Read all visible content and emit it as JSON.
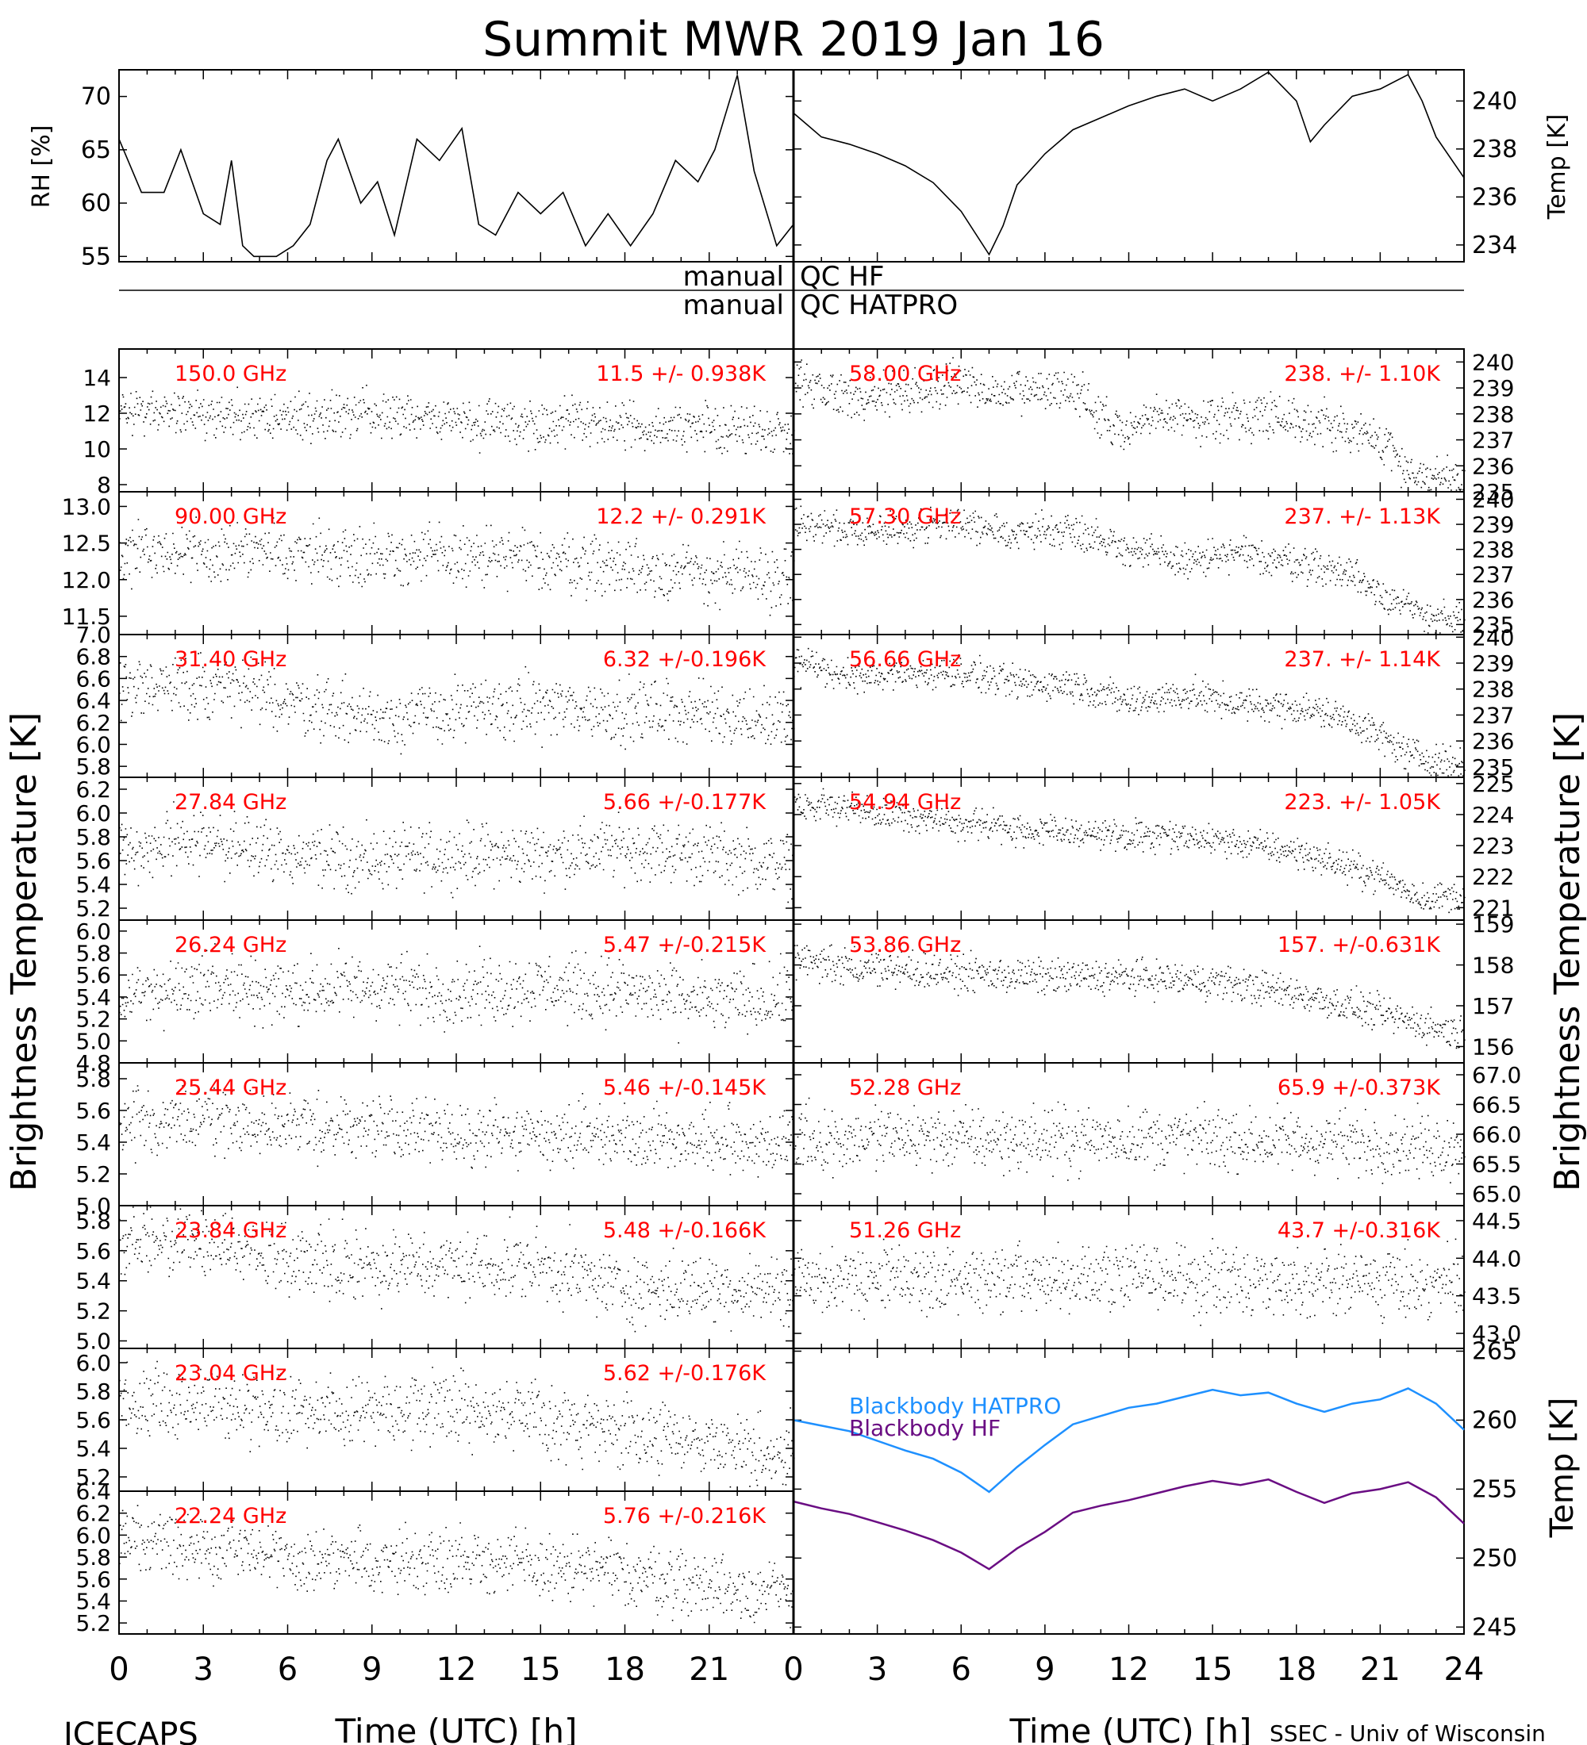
{
  "title": "Summit MWR 2019 Jan 16",
  "footer": {
    "left": "ICECAPS",
    "right": "SSEC - Univ of Wisconsin"
  },
  "qc_labels": {
    "upper_left": "manual",
    "upper_right": "QC HF",
    "lower_left": "manual",
    "lower_right": "QC HATPRO"
  },
  "x_axis": {
    "label": "Time (UTC) [h]",
    "ticks_left": [
      "0",
      "3",
      "6",
      "9",
      "12",
      "15",
      "18",
      "21"
    ],
    "ticks_right": [
      "0",
      "3",
      "6",
      "9",
      "12",
      "15",
      "18",
      "21",
      "24"
    ],
    "range": [
      0,
      24
    ]
  },
  "y_axis_labels": {
    "left_main": "Brightness Temperature [K]",
    "right_main": "Brightness Temperature [K]",
    "rh": "RH [%]",
    "temp_top": "Temp [K]",
    "temp_bottom": "Temp [K]"
  },
  "colors": {
    "data": "#000000",
    "annotation": "#ff0000",
    "bb_hatpro": "#1e90ff",
    "bb_hf": "#6a0d83"
  },
  "chart_data": [
    {
      "type": "line",
      "id": "rh",
      "ylabel": "RH [%]",
      "ylim": [
        54.5,
        72.5
      ],
      "ticks": [
        "55",
        "60",
        "65",
        "70"
      ],
      "x": [
        0,
        0.8,
        1.6,
        2.2,
        3.0,
        3.6,
        4.0,
        4.4,
        4.8,
        5.6,
        6.2,
        6.8,
        7.4,
        7.8,
        8.6,
        9.2,
        9.8,
        10.6,
        11.4,
        12.2,
        12.8,
        13.4,
        14.2,
        15.0,
        15.8,
        16.6,
        17.4,
        18.2,
        19.0,
        19.8,
        20.6,
        21.2,
        22.0,
        22.6,
        23.4,
        24
      ],
      "values": [
        66,
        61,
        61,
        65,
        59,
        58,
        64,
        56,
        55,
        55,
        56,
        58,
        64,
        66,
        60,
        62,
        57,
        66,
        64,
        67,
        58,
        57,
        61,
        59,
        61,
        56,
        59,
        56,
        59,
        64,
        62,
        65,
        72,
        63,
        56,
        58
      ]
    },
    {
      "type": "line",
      "id": "temp_top",
      "ylabel": "Temp [K]",
      "ylim": [
        233.3,
        241.3
      ],
      "ticks": [
        "234",
        "236",
        "238",
        "240"
      ],
      "x": [
        0,
        1,
        2,
        3,
        4,
        5,
        6,
        7,
        7.5,
        8,
        9,
        10,
        11,
        12,
        13,
        14,
        15,
        16,
        17,
        18,
        18.5,
        19,
        20,
        21,
        22,
        22.5,
        23,
        24
      ],
      "values": [
        239.5,
        238.5,
        238.2,
        237.8,
        237.3,
        236.6,
        235.4,
        233.6,
        234.8,
        236.5,
        237.8,
        238.8,
        239.3,
        239.8,
        240.2,
        240.5,
        240.0,
        240.5,
        241.2,
        240.0,
        238.3,
        239.0,
        240.2,
        240.5,
        241.1,
        240.0,
        238.5,
        236.8
      ]
    },
    {
      "type": "scatter",
      "id": "ch150",
      "label": "150.0 GHz",
      "stat": "11.5 +/- 0.938K",
      "side": "left",
      "ylim": [
        7.6,
        15.6
      ],
      "ticks": [
        "8",
        "10",
        "12",
        "14"
      ],
      "x": [
        0,
        4,
        8,
        12,
        16,
        20,
        24
      ],
      "values": [
        12.1,
        11.8,
        11.9,
        11.6,
        11.4,
        11.2,
        11.0
      ],
      "noise": 0.94
    },
    {
      "type": "scatter",
      "id": "ch90",
      "label": "90.00 GHz",
      "stat": "12.2 +/- 0.291K",
      "side": "left",
      "ylim": [
        11.25,
        13.2
      ],
      "ticks": [
        "11.5",
        "12.0",
        "12.5",
        "13.0"
      ],
      "x": [
        0,
        4,
        8,
        12,
        16,
        20,
        24
      ],
      "values": [
        12.3,
        12.4,
        12.35,
        12.3,
        12.25,
        12.1,
        12.0
      ],
      "noise": 0.29
    },
    {
      "type": "scatter",
      "id": "ch3140",
      "label": "31.40 GHz",
      "stat": "6.32 +/-0.196K",
      "side": "left",
      "ylim": [
        5.7,
        7.0
      ],
      "ticks": [
        "5.8",
        "6.0",
        "6.2",
        "6.4",
        "6.6",
        "6.8",
        "7.0"
      ],
      "x": [
        0,
        3,
        6,
        9,
        12,
        15,
        18,
        21,
        24
      ],
      "values": [
        6.5,
        6.55,
        6.4,
        6.25,
        6.3,
        6.35,
        6.3,
        6.3,
        6.2
      ],
      "noise": 0.2
    },
    {
      "type": "scatter",
      "id": "ch2784",
      "label": "27.84 GHz",
      "stat": "5.66 +/-0.177K",
      "side": "left",
      "ylim": [
        5.1,
        6.3
      ],
      "ticks": [
        "5.2",
        "5.4",
        "5.6",
        "5.8",
        "6.0",
        "6.2"
      ],
      "x": [
        0,
        3,
        6,
        9,
        12,
        15,
        18,
        21,
        24
      ],
      "values": [
        5.7,
        5.75,
        5.65,
        5.6,
        5.65,
        5.65,
        5.7,
        5.65,
        5.55
      ],
      "noise": 0.18
    },
    {
      "type": "scatter",
      "id": "ch2624",
      "label": "26.24 GHz",
      "stat": "5.47 +/-0.215K",
      "side": "left",
      "ylim": [
        4.8,
        6.1
      ],
      "ticks": [
        "4.8",
        "5.0",
        "5.2",
        "5.4",
        "5.6",
        "5.8",
        "6.0"
      ],
      "x": [
        0,
        3,
        6,
        9,
        12,
        15,
        18,
        21,
        24
      ],
      "values": [
        5.4,
        5.5,
        5.45,
        5.5,
        5.45,
        5.5,
        5.45,
        5.35,
        5.4
      ],
      "noise": 0.21
    },
    {
      "type": "scatter",
      "id": "ch2544",
      "label": "25.44 GHz",
      "stat": "5.46 +/-0.145K",
      "side": "left",
      "ylim": [
        5.0,
        5.9
      ],
      "ticks": [
        "5.0",
        "5.2",
        "5.4",
        "5.6",
        "5.8"
      ],
      "x": [
        0,
        3,
        6,
        9,
        12,
        15,
        18,
        21,
        24
      ],
      "values": [
        5.5,
        5.55,
        5.5,
        5.5,
        5.45,
        5.45,
        5.45,
        5.4,
        5.4
      ],
      "noise": 0.14
    },
    {
      "type": "scatter",
      "id": "ch2384",
      "label": "23.84 GHz",
      "stat": "5.48 +/-0.166K",
      "side": "left",
      "ylim": [
        4.95,
        5.9
      ],
      "ticks": [
        "5.0",
        "5.2",
        "5.4",
        "5.6",
        "5.8"
      ],
      "x": [
        0,
        3,
        6,
        9,
        12,
        15,
        18,
        21,
        24
      ],
      "values": [
        5.65,
        5.65,
        5.55,
        5.5,
        5.5,
        5.5,
        5.35,
        5.35,
        5.35
      ],
      "noise": 0.16
    },
    {
      "type": "scatter",
      "id": "ch2304",
      "label": "23.04 GHz",
      "stat": "5.62 +/-0.176K",
      "side": "left",
      "ylim": [
        5.1,
        6.1
      ],
      "ticks": [
        "5.2",
        "5.4",
        "5.6",
        "5.8",
        "6.0"
      ],
      "x": [
        0,
        3,
        6,
        9,
        12,
        15,
        18,
        21,
        24
      ],
      "values": [
        5.75,
        5.7,
        5.65,
        5.7,
        5.7,
        5.6,
        5.5,
        5.45,
        5.35
      ],
      "noise": 0.17
    },
    {
      "type": "scatter",
      "id": "ch2224",
      "label": "22.24 GHz",
      "stat": "5.76 +/-0.216K",
      "side": "left",
      "ylim": [
        5.1,
        6.4
      ],
      "ticks": [
        "5.2",
        "5.4",
        "5.6",
        "5.8",
        "6.0",
        "6.2",
        "6.4"
      ],
      "x": [
        0,
        3,
        6,
        9,
        12,
        15,
        18,
        21,
        24
      ],
      "values": [
        6.0,
        5.9,
        5.8,
        5.75,
        5.8,
        5.7,
        5.65,
        5.55,
        5.45
      ],
      "noise": 0.21
    },
    {
      "type": "scatter",
      "id": "ch5800",
      "label": "58.00 GHz",
      "stat": "238. +/- 1.10K",
      "side": "right",
      "ylim": [
        235,
        240.5
      ],
      "ticks": [
        "235",
        "236",
        "237",
        "238",
        "239",
        "240"
      ],
      "x": [
        0,
        2,
        4,
        6,
        7,
        8,
        10,
        11,
        12,
        13,
        15,
        17,
        19,
        21,
        22,
        24
      ],
      "values": [
        239.2,
        238.6,
        238.8,
        239.3,
        238.7,
        238.8,
        239.0,
        237.8,
        237.2,
        238.0,
        237.8,
        238.0,
        237.6,
        237.0,
        235.8,
        235.3
      ],
      "noise": 0.6
    },
    {
      "type": "scatter",
      "id": "ch5730",
      "label": "57.30 GHz",
      "stat": "237. +/- 1.13K",
      "side": "right",
      "ylim": [
        234.6,
        240.3
      ],
      "ticks": [
        "235",
        "236",
        "237",
        "238",
        "239",
        "240"
      ],
      "x": [
        0,
        2,
        4,
        6,
        7,
        8,
        10,
        12,
        14,
        16,
        18,
        20,
        22,
        24
      ],
      "values": [
        239.2,
        238.7,
        238.8,
        239.1,
        238.6,
        238.7,
        238.8,
        238.0,
        237.5,
        237.8,
        237.5,
        237.0,
        235.6,
        235.0
      ],
      "noise": 0.5
    },
    {
      "type": "scatter",
      "id": "ch5666",
      "label": "56.66 GHz",
      "stat": "237. +/- 1.14K",
      "side": "right",
      "ylim": [
        234.6,
        240.1
      ],
      "ticks": [
        "235",
        "236",
        "237",
        "238",
        "239",
        "240"
      ],
      "x": [
        0,
        2,
        4,
        6,
        7,
        8,
        10,
        12,
        14,
        16,
        18,
        20,
        22,
        24
      ],
      "values": [
        239.0,
        238.5,
        238.6,
        238.7,
        238.4,
        238.2,
        238.2,
        237.5,
        237.8,
        237.4,
        237.3,
        236.8,
        235.5,
        235.0
      ],
      "noise": 0.45
    },
    {
      "type": "scatter",
      "id": "ch5494",
      "label": "54.94 GHz",
      "stat": "223. +/- 1.05K",
      "side": "right",
      "ylim": [
        220.6,
        225.2
      ],
      "ticks": [
        "221",
        "222",
        "223",
        "224",
        "225"
      ],
      "x": [
        0,
        3,
        6,
        9,
        12,
        15,
        18,
        21,
        22.5,
        24
      ],
      "values": [
        224.3,
        224.1,
        223.7,
        223.5,
        223.3,
        223.2,
        222.8,
        222.0,
        221.3,
        221.4
      ],
      "noise": 0.35
    },
    {
      "type": "scatter",
      "id": "ch5386",
      "label": "53.86 GHz",
      "stat": "157. +/-0.631K",
      "side": "right",
      "ylim": [
        155.6,
        159.1
      ],
      "ticks": [
        "156",
        "157",
        "158",
        "159"
      ],
      "x": [
        0,
        3,
        6,
        9,
        12,
        15,
        18,
        21,
        24
      ],
      "values": [
        158.1,
        157.9,
        157.8,
        157.7,
        157.7,
        157.6,
        157.3,
        156.8,
        156.3
      ],
      "noise": 0.3
    },
    {
      "type": "scatter",
      "id": "ch5228",
      "label": "52.28 GHz",
      "stat": "65.9 +/-0.373K",
      "side": "right",
      "ylim": [
        64.8,
        67.2
      ],
      "ticks": [
        "65.0",
        "65.5",
        "66.0",
        "66.5",
        "67.0"
      ],
      "x": [
        0,
        4,
        8,
        12,
        16,
        20,
        24
      ],
      "values": [
        65.9,
        65.95,
        65.9,
        65.95,
        65.9,
        65.85,
        65.8
      ],
      "noise": 0.37
    },
    {
      "type": "scatter",
      "id": "ch5126",
      "label": "51.26 GHz",
      "stat": "43.7 +/-0.316K",
      "side": "right",
      "ylim": [
        42.8,
        44.7
      ],
      "ticks": [
        "43.0",
        "43.5",
        "44.0",
        "44.5"
      ],
      "x": [
        0,
        4,
        8,
        12,
        16,
        20,
        24
      ],
      "values": [
        43.7,
        43.75,
        43.7,
        43.75,
        43.7,
        43.7,
        43.65
      ],
      "noise": 0.31
    },
    {
      "type": "line",
      "id": "blackbody",
      "ylabel": "Temp [K]",
      "ylim": [
        244.5,
        265.2
      ],
      "ticks": [
        "245",
        "250",
        "255",
        "260",
        "265"
      ],
      "series": [
        {
          "name": "Blackbody HATPRO",
          "color": "#1e90ff",
          "x": [
            0,
            1,
            2,
            3,
            4,
            5,
            6,
            7,
            8,
            9,
            10,
            11,
            12,
            13,
            14,
            15,
            16,
            17,
            18,
            19,
            20,
            21,
            22,
            23,
            24
          ],
          "values": [
            260.0,
            259.6,
            259.2,
            258.5,
            257.8,
            257.2,
            256.2,
            254.8,
            256.6,
            258.2,
            259.7,
            260.3,
            260.9,
            261.2,
            261.7,
            262.2,
            261.8,
            262.0,
            261.2,
            260.6,
            261.2,
            261.5,
            262.3,
            261.2,
            259.3
          ]
        },
        {
          "name": "Blackbody HF",
          "color": "#6a0d83",
          "x": [
            0,
            1,
            2,
            3,
            4,
            5,
            6,
            7,
            8,
            9,
            10,
            11,
            12,
            13,
            14,
            15,
            16,
            17,
            18,
            19,
            20,
            21,
            22,
            23,
            24
          ],
          "values": [
            254.1,
            253.6,
            253.2,
            252.6,
            252.0,
            251.3,
            250.4,
            249.2,
            250.7,
            251.9,
            253.3,
            253.8,
            254.2,
            254.7,
            255.2,
            255.6,
            255.3,
            255.7,
            254.8,
            254.0,
            254.7,
            255.0,
            255.5,
            254.4,
            252.5
          ]
        }
      ]
    }
  ]
}
